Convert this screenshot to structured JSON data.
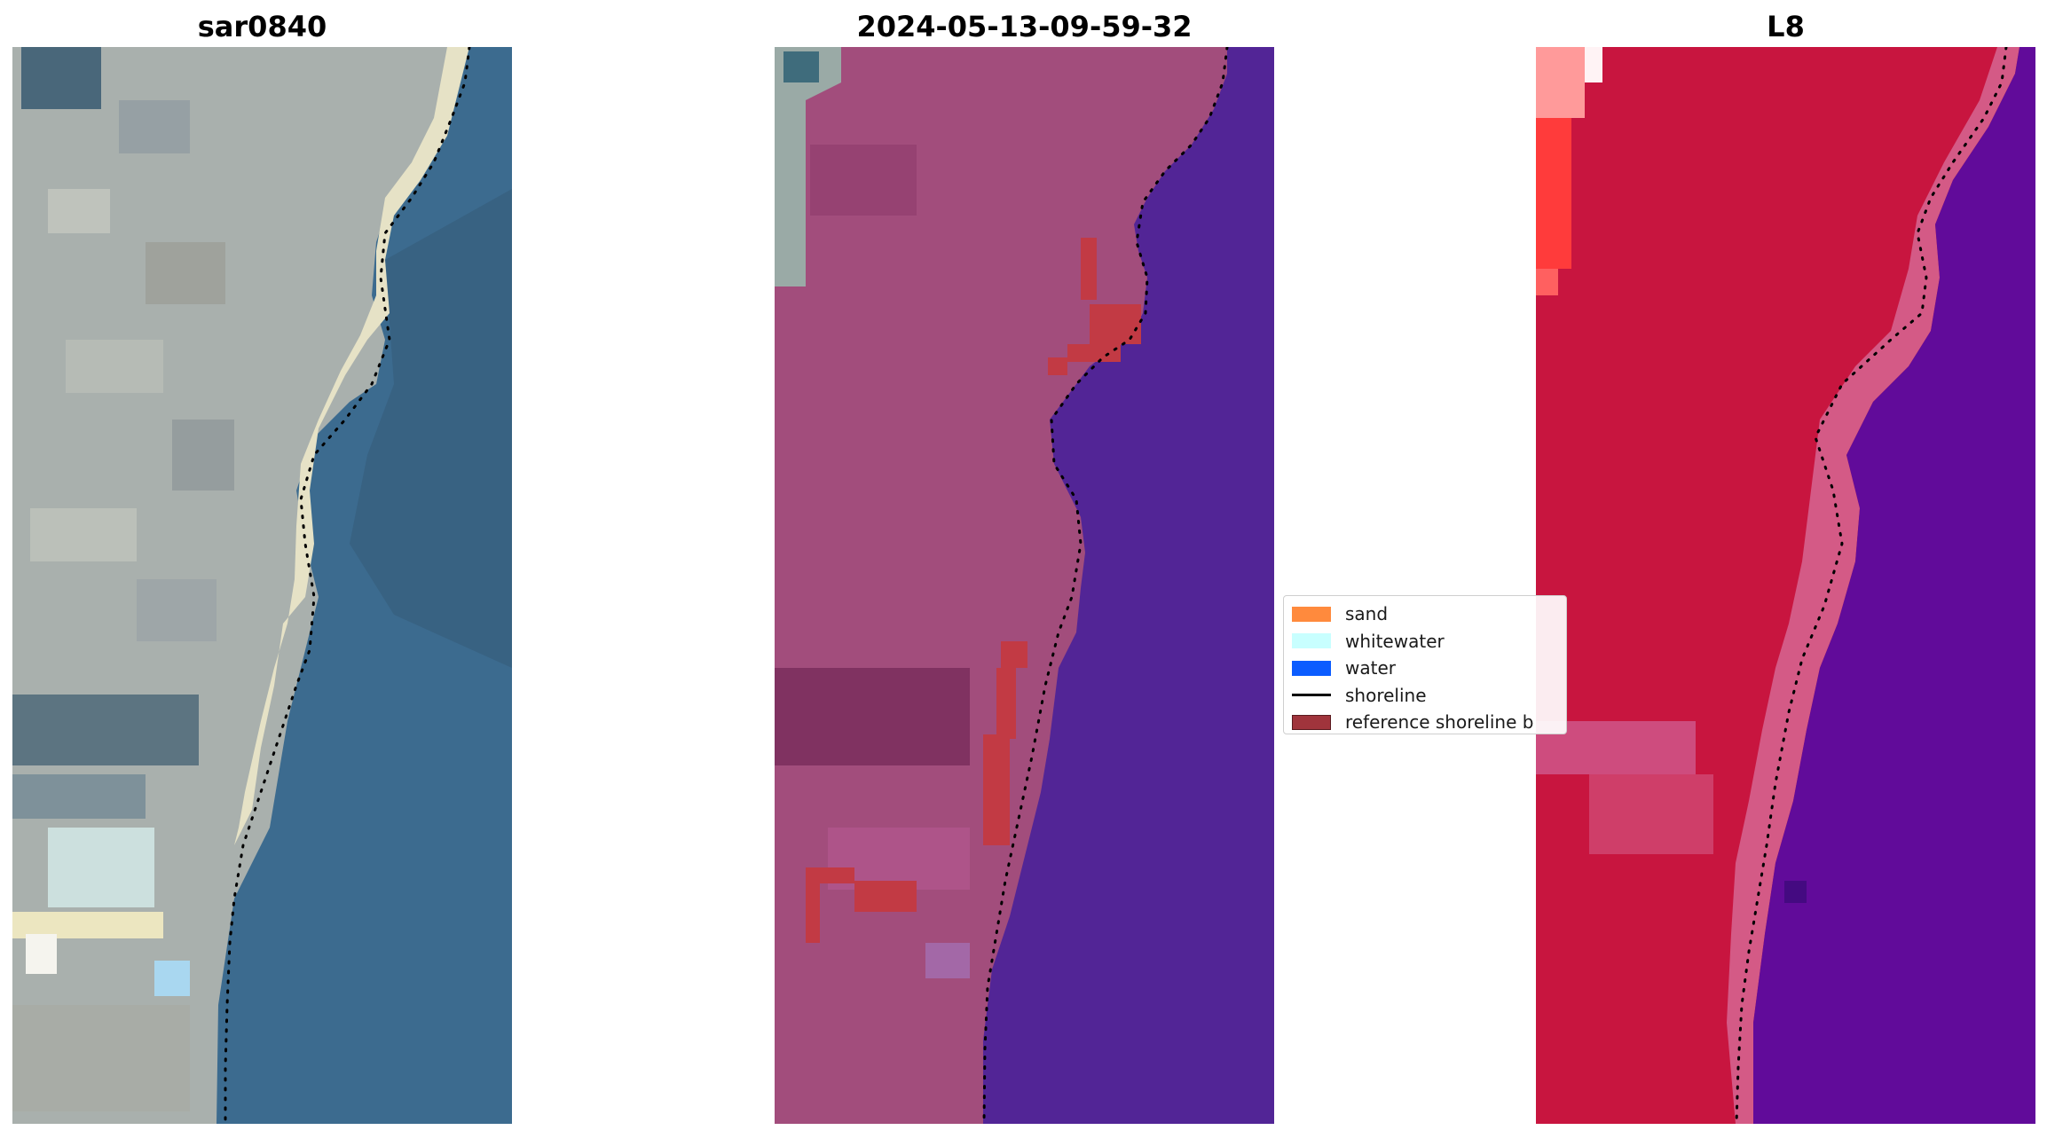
{
  "panels": [
    {
      "title": "sar0840",
      "colors": {
        "land": "#a9b0ad",
        "sand": "#e6e2c6",
        "water": "#3c6b8f",
        "dark": "#34556f"
      }
    },
    {
      "title": "2024-05-13-09-59-32",
      "colors": {
        "land": "#a24d7c",
        "dark": "#7a2e5d",
        "water": "#522596",
        "reference_overlay": "#c23a44",
        "inset": "#9aaaa6"
      }
    },
    {
      "title": "L8",
      "colors": {
        "land": "#c8153f",
        "beach": "#d45a86",
        "water": "#610b9a",
        "bright": "#ff3b3b"
      }
    }
  ],
  "legend": {
    "items": [
      {
        "label": "sand",
        "color": "#ff8a3d",
        "kind": "patch"
      },
      {
        "label": "whitewater",
        "color": "#c8ffff",
        "kind": "patch"
      },
      {
        "label": "water",
        "color": "#0b5cff",
        "kind": "patch"
      },
      {
        "label": "shoreline",
        "color": "#000000",
        "kind": "line"
      },
      {
        "label": "reference shoreline b",
        "color": "#a0343c",
        "kind": "patch"
      }
    ]
  }
}
